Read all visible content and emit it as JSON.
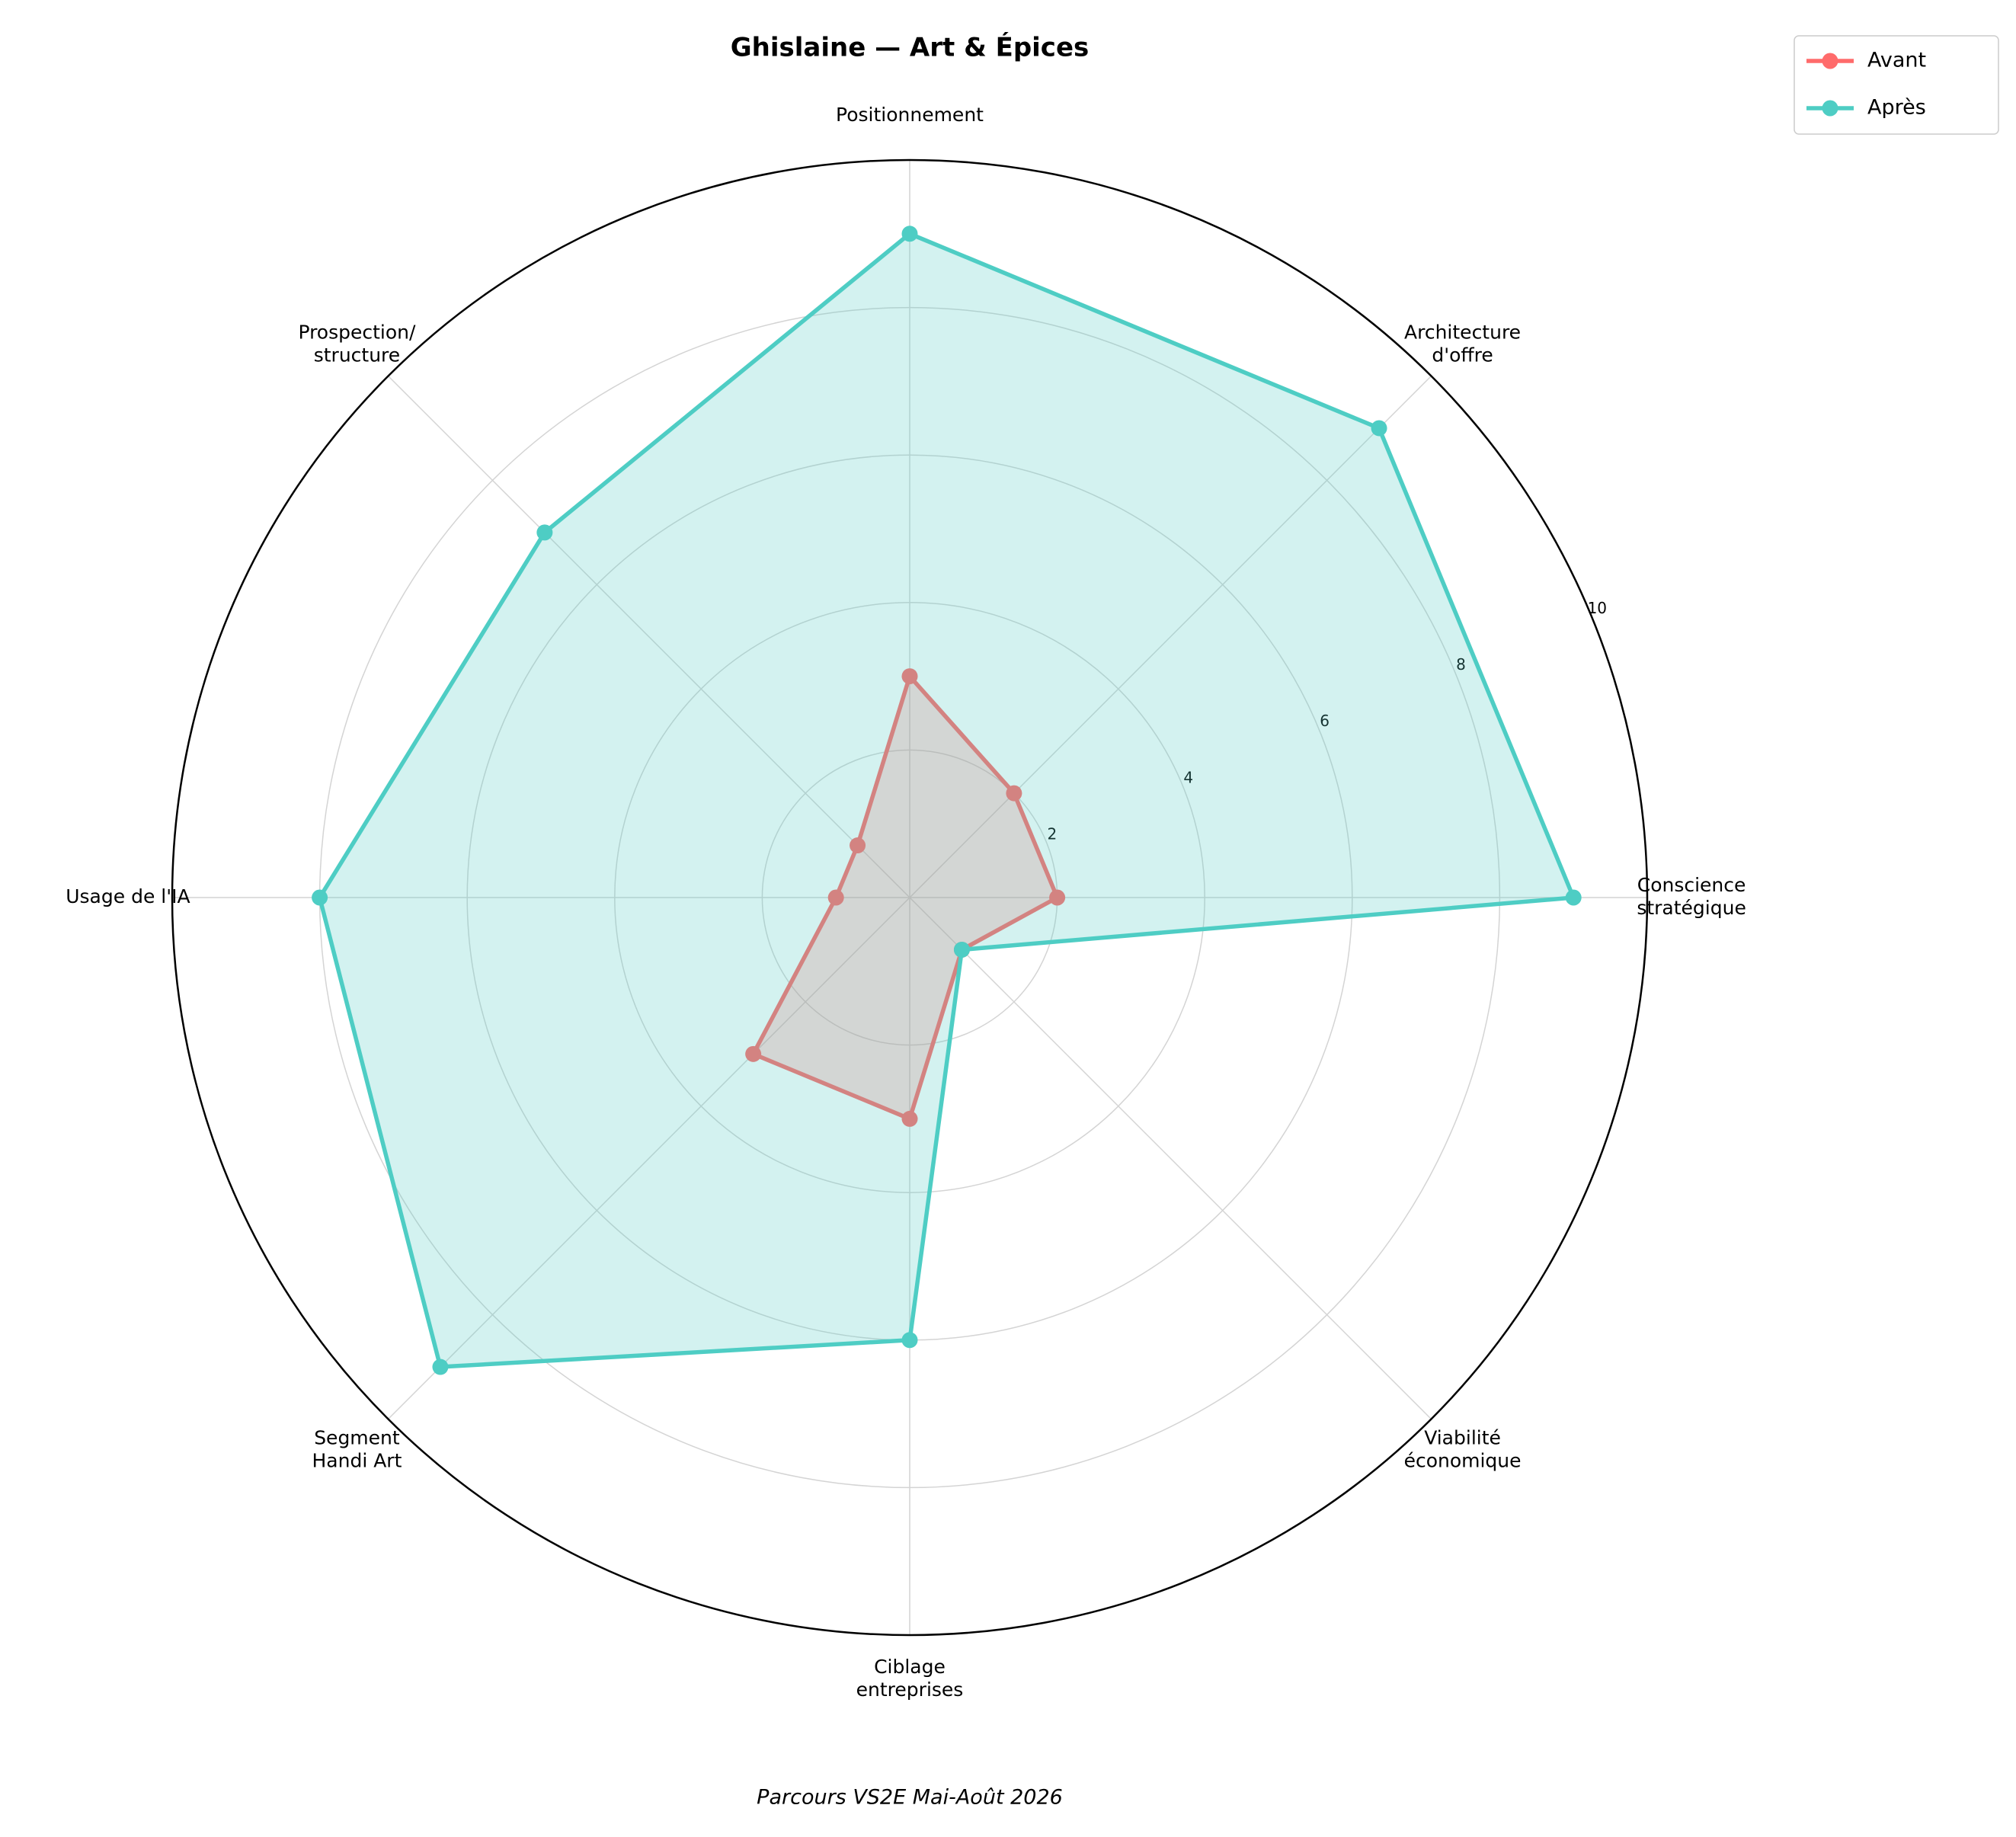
{
  "chart_data": {
    "type": "radar",
    "title": "Ghislaine — Art & Épices",
    "subtitle": "Parcours VS2E Mai-Août 2026",
    "categories": [
      "Conscience\nstratégique",
      "Architecture\nd'offre",
      "Positionnement",
      "Prospection/\nstructure",
      "Usage de l'IA",
      "Segment\nHandi Art",
      "Ciblage\nentreprises",
      "Viabilité\néconomique"
    ],
    "series": [
      {
        "name": "Avant",
        "color": "#ff6b6b",
        "values": [
          2,
          2,
          3,
          1,
          1,
          3,
          3,
          1
        ]
      },
      {
        "name": "Après",
        "color": "#4ecdc4",
        "values": [
          9,
          9,
          9,
          7,
          8,
          9,
          6,
          1
        ]
      }
    ],
    "rlim": [
      0,
      10
    ],
    "rticks": [
      2,
      4,
      6,
      8,
      10
    ],
    "grid": true,
    "legend": "upper right"
  }
}
